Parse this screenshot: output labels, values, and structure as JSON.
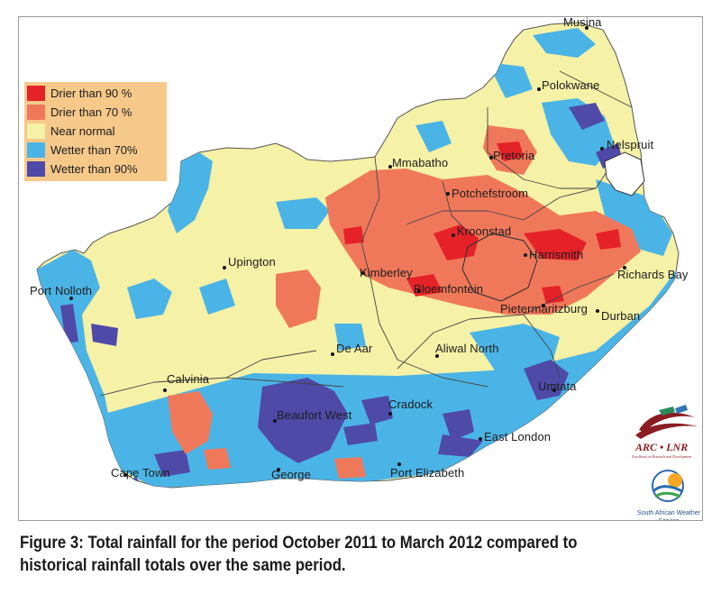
{
  "legend": [
    {
      "label": "Drier than 90 %",
      "color": "#e52228"
    },
    {
      "label": "Drier than 70 %",
      "color": "#f0785a"
    },
    {
      "label": "Near normal",
      "color": "#f5f1a6"
    },
    {
      "label": "Wetter than 70%",
      "color": "#4bb4e6"
    },
    {
      "label": "Wetter than 90%",
      "color": "#4f4aa8"
    }
  ],
  "places": {
    "musina": "Musina",
    "polokwane": "Polokwane",
    "nelspruit": "Nelspruit",
    "mmabatho": "Mmabatho",
    "pretoria": "Pretoria",
    "potchefstroom": "Potchefstroom",
    "kroonstad": "Kroonstad",
    "harrismith": "Harrismith",
    "richards_bay": "Richards Bay",
    "upington": "Upington",
    "kimberley": "Kimberley",
    "bloemfontein": "Bloemfontein",
    "pietermaritzburg": "Pietermaritzburg",
    "durban": "Durban",
    "port_nolloth": "Port Nolloth",
    "de_aar": "De Aar",
    "aliwal_north": "Aliwal North",
    "calvinia": "Calvinia",
    "umtata": "Umtata",
    "beaufort_west": "Beaufort West",
    "cradock": "Cradock",
    "east_london": "East London",
    "cape_town": "Cape Town",
    "george": "George",
    "port_elizabeth": "Port Elizabeth"
  },
  "logos": {
    "arc_name": "ARC • LNR",
    "arc_tagline": "Excellence in Research and Development",
    "saws_name": "South African Weather Service"
  },
  "caption": "Figure 3: Total rainfall for the period October 2011 to March 2012 compared to historical rainfall totals over the same period."
}
